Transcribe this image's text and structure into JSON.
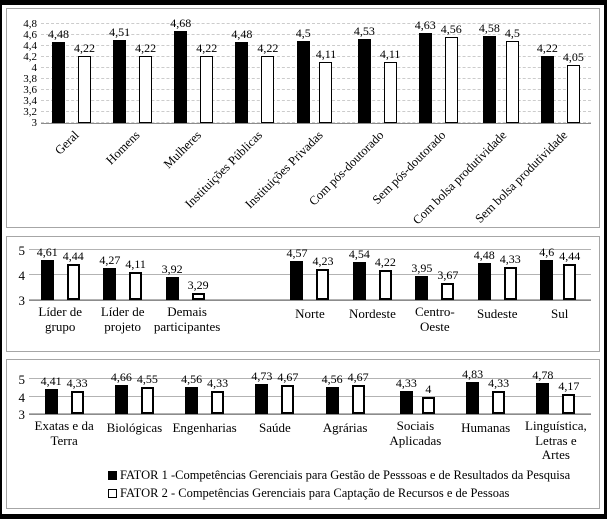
{
  "colors": {
    "fator1_bar": "#000000",
    "fator2_bar": "#ffffff",
    "bar_border": "#000000",
    "gridline": "#cccccc",
    "axis_line": "#8c8c8c",
    "panel_border": "#a6a6a6",
    "outer_border": "#000000"
  },
  "chart_data": [
    {
      "type": "bar",
      "title": "",
      "xlabel": "",
      "ylabel": "",
      "categories": [
        "Geral",
        "Homens",
        "Mulheres",
        "Instituições Públicas",
        "Instituições Privadas",
        "Com pós-doutorado",
        "Sem pós-doutorado",
        "Com bolsa produtividade",
        "Sem bolsa produtividade"
      ],
      "series": [
        {
          "name": "FATOR 1",
          "values": [
            "4,48",
            "4,51",
            "4,68",
            "4,48",
            "4,5",
            "4,53",
            "4,63",
            "4,58",
            "4,22"
          ]
        },
        {
          "name": "FATOR 2",
          "values": [
            "4,22",
            "4,22",
            "4,22",
            "4,22",
            "4,11",
            "4,11",
            "4,56",
            "4,5",
            "4,05"
          ]
        }
      ],
      "yticks": [
        "4,8",
        "4,6",
        "4,4",
        "4,2",
        "4",
        "3,8",
        "3,6",
        "3,4",
        "3,2",
        "3"
      ],
      "ylim": [
        3,
        4.8
      ],
      "grid": "dashed",
      "category_label_rotation": 45,
      "legend_position": "none"
    },
    {
      "type": "bar",
      "title": "",
      "xlabel": "",
      "ylabel": "",
      "categories": [
        "Líder de grupo",
        "Líder de projeto",
        "Demais participantes",
        "Norte",
        "Nordeste",
        "Centro-Oeste",
        "Sudeste",
        "Sul"
      ],
      "series": [
        {
          "name": "FATOR 1",
          "values": [
            "4,61",
            "4,27",
            "3,92",
            "4,57",
            "4,54",
            "3,95",
            "4,48",
            "4,6"
          ]
        },
        {
          "name": "FATOR 2",
          "values": [
            "4,44",
            "4,11",
            "3,29",
            "4,23",
            "4,22",
            "3,67",
            "4,33",
            "4,44"
          ]
        }
      ],
      "yticks": [
        "5",
        "4",
        "3"
      ],
      "ylim": [
        3,
        5
      ],
      "grid": "solid",
      "gap_after_index": 2,
      "category_label_rotation": 0,
      "legend_position": "none"
    },
    {
      "type": "bar",
      "title": "",
      "xlabel": "",
      "ylabel": "",
      "categories": [
        "Exatas e da Terra",
        "Biológicas",
        "Engenharias",
        "Saúde",
        "Agrárias",
        "Sociais Aplicadas",
        "Humanas",
        "Linguística, Letras e Artes"
      ],
      "series": [
        {
          "name": "FATOR 1",
          "values": [
            "4,41",
            "4,66",
            "4,56",
            "4,73",
            "4,56",
            "4,33",
            "4,83",
            "4,78"
          ]
        },
        {
          "name": "FATOR 2",
          "values": [
            "4,33",
            "4,55",
            "4,33",
            "4,67",
            "4,67",
            "4",
            "4,33",
            "4,17"
          ]
        }
      ],
      "yticks": [
        "5",
        "4",
        "3"
      ],
      "ylim": [
        3,
        5
      ],
      "grid": "solid",
      "category_label_rotation": 0,
      "legend_position": "bottom"
    }
  ],
  "legend": {
    "items": [
      {
        "marker": "filled-square",
        "label": "FATOR 1 -Competências Gerenciais para Gestão de Pesssoas e de Resultados da Pesquisa"
      },
      {
        "marker": "open-square",
        "label": "FATOR 2 - Competências Gerenciais para Captação de Recursos e de Pessoas"
      }
    ]
  }
}
